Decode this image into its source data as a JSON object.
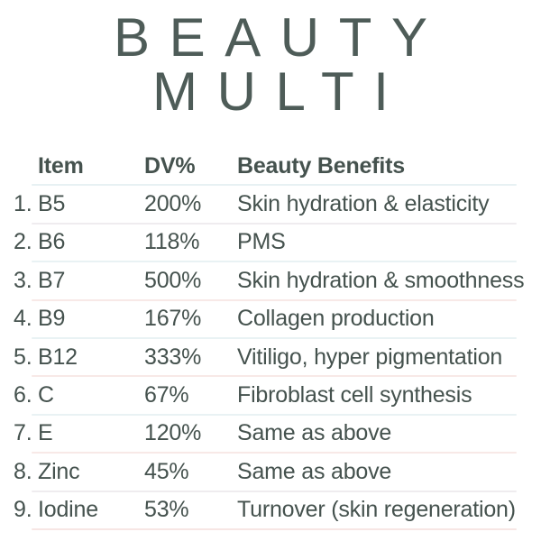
{
  "title": {
    "line1": "BEAUTY",
    "line2": "MULTI"
  },
  "colors": {
    "title_text": "#4e5c58",
    "table_text": "#45524e",
    "divider_blue": "#e9f2f4",
    "divider_pink": "#f8e9e7",
    "divider_gray": "#efecef"
  },
  "table": {
    "columns": {
      "item": "Item",
      "dv": "DV%",
      "benefits": "Beauty Benefits"
    },
    "header_divider": "#e7f1f3",
    "rows": [
      {
        "num": "1.",
        "item": "B5",
        "dv": "200%",
        "benefit": "Skin hydration & elasticity",
        "divider": "#efecef"
      },
      {
        "num": "2.",
        "item": "B6",
        "dv": "118%",
        "benefit": "PMS",
        "divider": "#e9f2f4"
      },
      {
        "num": "3.",
        "item": "B7",
        "dv": "500%",
        "benefit": "Skin hydration & smoothness",
        "divider": "#f8e9e7"
      },
      {
        "num": "4.",
        "item": "B9",
        "dv": "167%",
        "benefit": "Collagen production",
        "divider": "#e9f2f4"
      },
      {
        "num": "5.",
        "item": "B12",
        "dv": "333%",
        "benefit": "Vitiligo, hyper pigmentation",
        "divider": "#f8e9e7"
      },
      {
        "num": "6.",
        "item": "C",
        "dv": "67%",
        "benefit": "Fibroblast cell synthesis",
        "divider": "#e9f2f4"
      },
      {
        "num": "7.",
        "item": "E",
        "dv": "120%",
        "benefit": "Same as above",
        "divider": "#f8e9e7"
      },
      {
        "num": "8.",
        "item": "Zinc",
        "dv": "45%",
        "benefit": "Same as above",
        "divider": "#efecef"
      },
      {
        "num": "9.",
        "item": "Iodine",
        "dv": "53%",
        "benefit": "Turnover (skin regeneration)",
        "divider": "#f7e6e4"
      }
    ]
  }
}
